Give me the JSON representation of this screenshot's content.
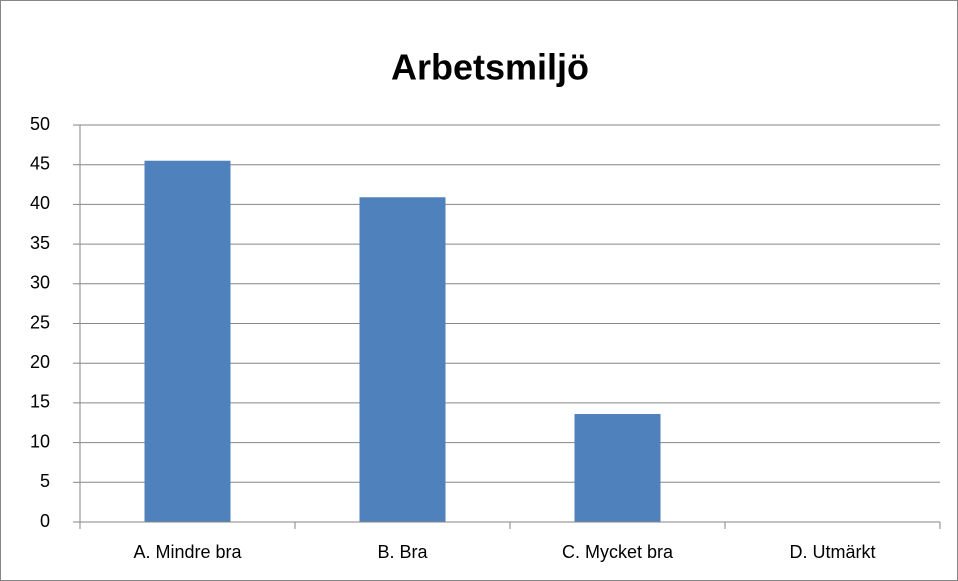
{
  "chart_data": {
    "type": "bar",
    "title": "Arbetsmiljö",
    "categories": [
      "A. Mindre bra",
      "B. Bra",
      "C. Mycket bra",
      "D. Utmärkt"
    ],
    "values": [
      45.5,
      40.9,
      13.6,
      0
    ],
    "color": "#4f81bd",
    "ylim": [
      0,
      50
    ],
    "yticks": [
      0,
      5,
      10,
      15,
      20,
      25,
      30,
      35,
      40,
      45,
      50
    ],
    "grid": true
  }
}
